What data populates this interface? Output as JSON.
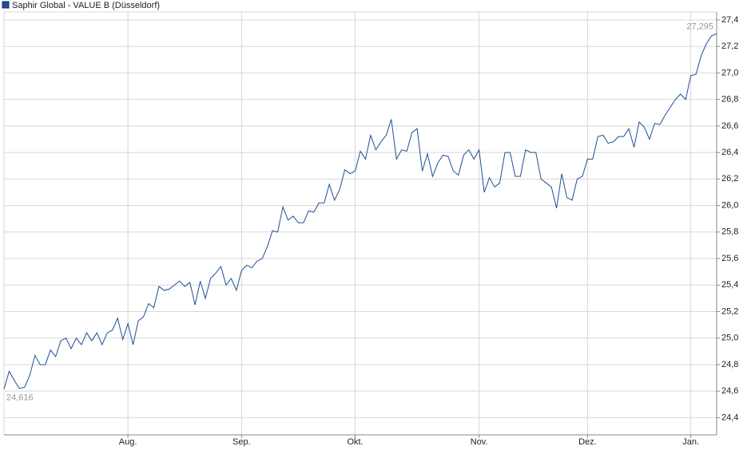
{
  "chart_data": {
    "type": "line",
    "categories": [
      null,
      null,
      null,
      null,
      null,
      null,
      null,
      null,
      null,
      null,
      null,
      null,
      null,
      null,
      null,
      null,
      null,
      null,
      null,
      null,
      null,
      null,
      null,
      null,
      "Aug.",
      null,
      null,
      null,
      null,
      null,
      null,
      null,
      null,
      null,
      null,
      null,
      null,
      null,
      null,
      null,
      null,
      null,
      null,
      null,
      null,
      null,
      "Sep.",
      null,
      null,
      null,
      null,
      null,
      null,
      null,
      null,
      null,
      null,
      null,
      null,
      null,
      null,
      null,
      null,
      null,
      null,
      null,
      null,
      null,
      "Okt.",
      null,
      null,
      null,
      null,
      null,
      null,
      null,
      null,
      null,
      null,
      null,
      null,
      null,
      null,
      null,
      null,
      null,
      null,
      null,
      null,
      null,
      null,
      null,
      "Nov.",
      null,
      null,
      null,
      null,
      null,
      null,
      null,
      null,
      null,
      null,
      null,
      null,
      null,
      null,
      null,
      null,
      null,
      null,
      null,
      null,
      "Dez.",
      null,
      null,
      null,
      null,
      null,
      null,
      null,
      null,
      null,
      null,
      null,
      null,
      null,
      null,
      null,
      null,
      null,
      null,
      null,
      "Jan.",
      null,
      null,
      null,
      null,
      null
    ],
    "series": [
      {
        "name": "Saphir Global - VALUE B (Düsseldorf)",
        "color": "#1f4e96",
        "values": [
          24.616,
          24.75,
          24.68,
          24.62,
          24.63,
          24.72,
          24.87,
          24.8,
          24.8,
          24.91,
          24.86,
          24.98,
          25.0,
          24.92,
          25.0,
          24.95,
          25.04,
          24.98,
          25.04,
          24.95,
          25.04,
          25.06,
          25.15,
          24.99,
          25.11,
          24.95,
          25.13,
          25.16,
          25.26,
          25.23,
          25.39,
          25.36,
          25.37,
          25.4,
          25.43,
          25.39,
          25.42,
          25.25,
          25.43,
          25.3,
          25.45,
          25.49,
          25.54,
          25.4,
          25.45,
          25.36,
          25.51,
          25.55,
          25.53,
          25.58,
          25.6,
          25.69,
          25.81,
          25.8,
          25.99,
          25.89,
          25.92,
          25.87,
          25.87,
          25.96,
          25.95,
          26.02,
          26.02,
          26.16,
          26.04,
          26.12,
          26.27,
          26.24,
          26.26,
          26.41,
          26.35,
          26.53,
          26.42,
          26.48,
          26.53,
          26.65,
          26.35,
          26.42,
          26.41,
          26.55,
          26.58,
          26.26,
          26.39,
          26.22,
          26.32,
          26.38,
          26.37,
          26.26,
          26.23,
          26.38,
          26.42,
          26.35,
          26.42,
          26.1,
          26.21,
          26.14,
          26.17,
          26.4,
          26.4,
          26.22,
          26.22,
          26.42,
          26.4,
          26.4,
          26.2,
          26.17,
          26.14,
          25.98,
          26.24,
          26.06,
          26.04,
          26.2,
          26.22,
          26.35,
          26.35,
          26.52,
          26.53,
          26.47,
          26.48,
          26.52,
          26.52,
          26.58,
          26.44,
          26.63,
          26.59,
          26.5,
          26.62,
          26.61,
          26.68,
          26.74,
          26.8,
          26.84,
          26.8,
          26.98,
          26.99,
          27.13,
          27.22,
          27.28,
          27.295
        ],
        "value_labels": [
          "24,616",
          null,
          null,
          null,
          null,
          null,
          null,
          null,
          null,
          null,
          null,
          null,
          null,
          null,
          null,
          null,
          null,
          null,
          null,
          null,
          null,
          null,
          null,
          null,
          null,
          null,
          null,
          null,
          null,
          null,
          null,
          null,
          null,
          null,
          null,
          null,
          null,
          null,
          null,
          null,
          null,
          null,
          null,
          null,
          null,
          null,
          null,
          null,
          null,
          null,
          null,
          null,
          null,
          null,
          null,
          null,
          null,
          null,
          null,
          null,
          null,
          null,
          null,
          null,
          null,
          null,
          null,
          null,
          null,
          null,
          null,
          null,
          null,
          null,
          null,
          null,
          null,
          null,
          null,
          null,
          null,
          null,
          null,
          null,
          null,
          null,
          null,
          null,
          null,
          null,
          null,
          null,
          null,
          null,
          null,
          null,
          null,
          null,
          null,
          null,
          null,
          null,
          null,
          null,
          null,
          null,
          null,
          null,
          null,
          null,
          null,
          null,
          null,
          null,
          null,
          null,
          null,
          null,
          null,
          null,
          null,
          null,
          null,
          null,
          null,
          null,
          null,
          null,
          null,
          null,
          null,
          null,
          null,
          null,
          null,
          null,
          null,
          null,
          "27,295"
        ]
      }
    ],
    "ylim": [
      24.27,
      27.46
    ],
    "yticks": [
      {
        "value": 24.4,
        "label": "24,4"
      },
      {
        "value": 24.6,
        "label": "24,6"
      },
      {
        "value": 24.8,
        "label": "24,8"
      },
      {
        "value": 25.0,
        "label": "25,0"
      },
      {
        "value": 25.2,
        "label": "25,2"
      },
      {
        "value": 25.4,
        "label": "25,4"
      },
      {
        "value": 25.6,
        "label": "25,6"
      },
      {
        "value": 25.8,
        "label": "25,8"
      },
      {
        "value": 26.0,
        "label": "26,0"
      },
      {
        "value": 26.2,
        "label": "26,2"
      },
      {
        "value": 26.4,
        "label": "26,4"
      },
      {
        "value": 26.6,
        "label": "26,6"
      },
      {
        "value": 26.8,
        "label": "26,8"
      },
      {
        "value": 27.0,
        "label": "27,0"
      },
      {
        "value": 27.2,
        "label": "27,2"
      },
      {
        "value": 27.4,
        "label": "27,4"
      }
    ],
    "grid": true,
    "legend": "top-left"
  }
}
